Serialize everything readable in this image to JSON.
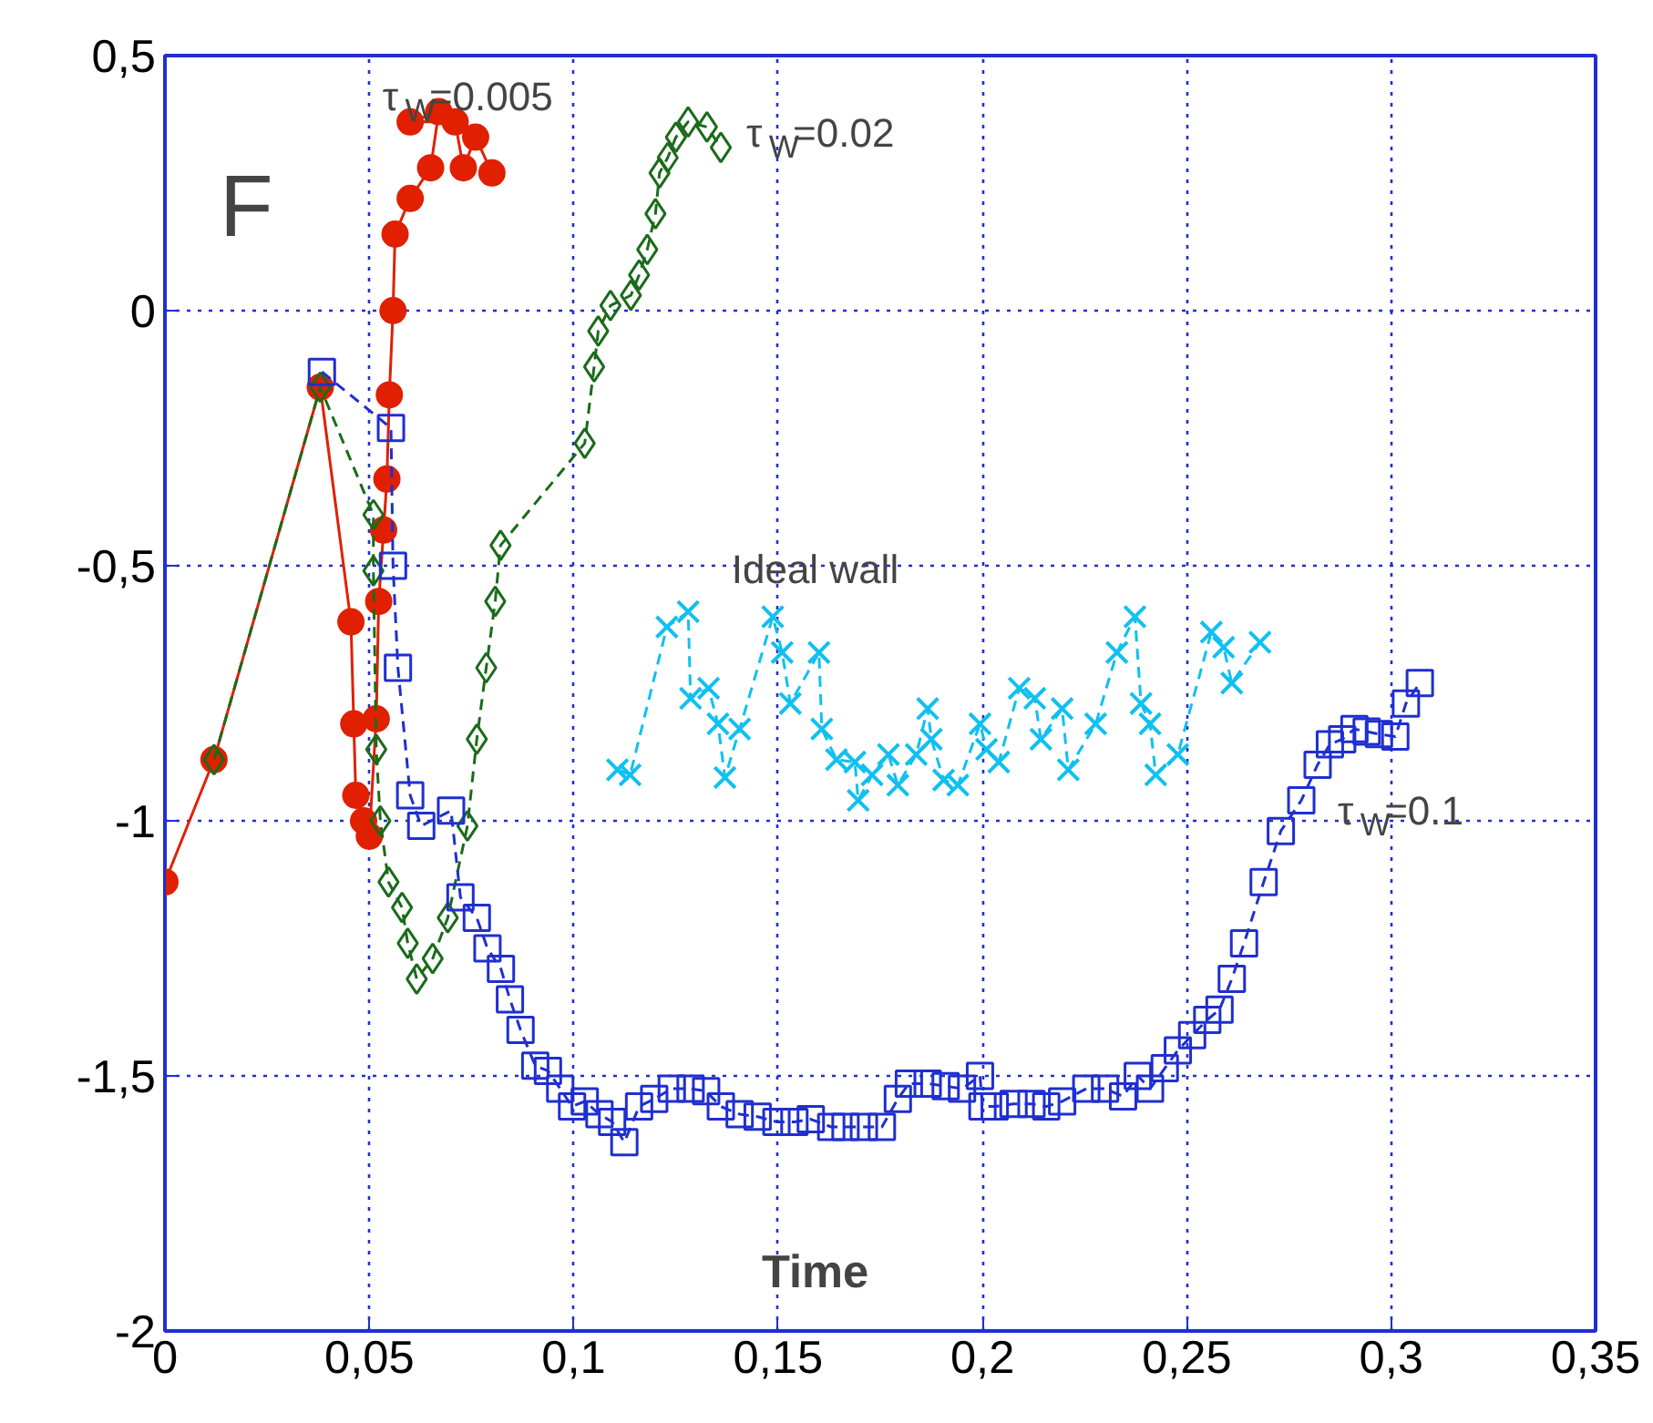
{
  "chart_data": {
    "type": "line",
    "xlabel": "Time",
    "xlim": [
      0,
      0.35
    ],
    "ylim": [
      -2,
      0.5
    ],
    "xticks": [
      0,
      {
        "value": 0.05,
        "label": "0,05"
      },
      {
        "value": 0.1,
        "label": "0,1"
      },
      {
        "value": 0.15,
        "label": "0,15"
      },
      {
        "value": 0.2,
        "label": "0,2"
      },
      {
        "value": 0.25,
        "label": "0,25"
      },
      {
        "value": 0.3,
        "label": "0,3"
      },
      {
        "value": 0.35,
        "label": "0,35"
      }
    ],
    "yticks": [
      {
        "value": -2,
        "label": "-2"
      },
      {
        "value": -1.5,
        "label": "-1,5"
      },
      {
        "value": -1,
        "label": "-1"
      },
      {
        "value": -0.5,
        "label": "-0,5"
      },
      0,
      {
        "value": 0.5,
        "label": "0,5"
      }
    ],
    "grid": true,
    "series": [
      {
        "name": "τ$_{W}$=0.005",
        "color": "#e02000",
        "marker": "circle",
        "line_style": "solid",
        "x": [
          0,
          0.012,
          0.038,
          0.0455,
          0.0462,
          0.0467,
          0.0486,
          0.05,
          0.0517,
          0.0523,
          0.0535,
          0.0543,
          0.0549,
          0.0558,
          0.0563,
          0.06,
          0.065,
          0.067,
          0.06,
          0.071,
          0.073,
          0.076,
          0.08
        ],
        "values": [
          -1.12,
          -0.88,
          -0.15,
          -0.61,
          -0.81,
          -0.95,
          -1.0,
          -1.03,
          -0.8,
          -0.57,
          -0.43,
          -0.33,
          -0.165,
          0.0,
          0.15,
          0.22,
          0.28,
          0.39,
          0.37,
          0.37,
          0.28,
          0.34,
          0.27
        ]
      },
      {
        "name": "τ$_{W}$=0.02",
        "color": "#1a6b1a",
        "marker": "diamond",
        "line_style": "dashed",
        "x": [
          0.012,
          0.038,
          0.051,
          0.051,
          0.0517,
          0.0527,
          0.0547,
          0.058,
          0.0594,
          0.0616,
          0.0655,
          0.0692,
          0.074,
          0.0763,
          0.0786,
          0.0808,
          0.0821,
          0.1027,
          0.105,
          0.106,
          0.109,
          0.114,
          0.116,
          0.118,
          0.12,
          0.121,
          0.123,
          0.125,
          0.128,
          0.1326,
          0.136
        ],
        "values": [
          -0.88,
          -0.15,
          -0.4,
          -0.51,
          -0.86,
          -1.0,
          -1.12,
          -1.17,
          -1.24,
          -1.31,
          -1.27,
          -1.19,
          -1.01,
          -0.84,
          -0.7,
          -0.57,
          -0.46,
          -0.26,
          -0.11,
          -0.04,
          0.01,
          0.03,
          0.07,
          0.12,
          0.19,
          0.27,
          0.3,
          0.34,
          0.37,
          0.36,
          0.32
        ]
      },
      {
        "name": "τ$_{W}$=0.1",
        "color": "#1f2fd0",
        "marker": "square",
        "line_style": "dashed",
        "x": [
          0.0384,
          0.0553,
          0.0558,
          0.057,
          0.06,
          0.0627,
          0.07,
          0.0723,
          0.0763,
          0.0789,
          0.0822,
          0.0844,
          0.087,
          0.0906,
          0.0937,
          0.0967,
          0.0996,
          0.1027,
          0.1063,
          0.1094,
          0.1124,
          0.116,
          0.1197,
          0.124,
          0.1286,
          0.1324,
          0.136,
          0.1406,
          0.145,
          0.1496,
          0.154,
          0.158,
          0.163,
          0.1665,
          0.171,
          0.1754,
          0.1793,
          0.182,
          0.1866,
          0.191,
          0.195,
          0.1994,
          0.2,
          0.203,
          0.2076,
          0.212,
          0.2156,
          0.2195,
          0.2254,
          0.23,
          0.2344,
          0.238,
          0.241,
          0.2446,
          0.2478,
          0.2513,
          0.255,
          0.258,
          0.261,
          0.264,
          0.2688,
          0.273,
          0.278,
          0.282,
          0.285,
          0.288,
          0.291,
          0.294,
          0.297,
          0.301,
          0.3036,
          0.307
        ],
        "values": [
          -0.12,
          -0.23,
          -0.5,
          -0.7,
          -0.95,
          -1.01,
          -0.98,
          -1.15,
          -1.19,
          -1.25,
          -1.29,
          -1.35,
          -1.41,
          -1.48,
          -1.49,
          -1.525,
          -1.56,
          -1.55,
          -1.575,
          -1.59,
          -1.63,
          -1.56,
          -1.545,
          -1.525,
          -1.525,
          -1.53,
          -1.56,
          -1.575,
          -1.58,
          -1.59,
          -1.59,
          -1.585,
          -1.6,
          -1.6,
          -1.6,
          -1.6,
          -1.545,
          -1.515,
          -1.515,
          -1.52,
          -1.525,
          -1.5,
          -1.56,
          -1.56,
          -1.555,
          -1.555,
          -1.56,
          -1.55,
          -1.525,
          -1.525,
          -1.54,
          -1.5,
          -1.525,
          -1.485,
          -1.45,
          -1.42,
          -1.39,
          -1.37,
          -1.31,
          -1.24,
          -1.12,
          -1.02,
          -0.96,
          -0.89,
          -0.85,
          -0.84,
          -0.82,
          -0.825,
          -0.83,
          -0.835,
          -0.77,
          -0.73
        ]
      },
      {
        "name": "Ideal wall",
        "color": "#10c0f0",
        "marker": "cross",
        "line_style": "dashed",
        "x": [
          0.1107,
          0.1138,
          0.1228,
          0.128,
          0.1286,
          0.133,
          0.1353,
          0.137,
          0.1406,
          0.1487,
          0.151,
          0.153,
          0.16,
          0.1607,
          0.1643,
          0.1688,
          0.1696,
          0.173,
          0.177,
          0.1793,
          0.1838,
          0.1866,
          0.1875,
          0.1905,
          0.194,
          0.1994,
          0.201,
          0.204,
          0.209,
          0.2128,
          0.2143,
          0.2195,
          0.221,
          0.2277,
          0.2329,
          0.2373,
          0.2388,
          0.241,
          0.2424,
          0.2478,
          0.256,
          0.259,
          0.261,
          0.2679
        ],
        "values": [
          -0.9,
          -0.91,
          -0.62,
          -0.59,
          -0.76,
          -0.74,
          -0.81,
          -0.915,
          -0.82,
          -0.6,
          -0.67,
          -0.77,
          -0.67,
          -0.82,
          -0.88,
          -0.885,
          -0.96,
          -0.91,
          -0.87,
          -0.93,
          -0.87,
          -0.78,
          -0.84,
          -0.92,
          -0.93,
          -0.81,
          -0.86,
          -0.885,
          -0.74,
          -0.76,
          -0.84,
          -0.78,
          -0.9,
          -0.81,
          -0.67,
          -0.6,
          -0.77,
          -0.81,
          -0.91,
          -0.87,
          -0.63,
          -0.66,
          -0.73,
          -0.65
        ]
      }
    ],
    "annotations": [
      "F"
    ]
  }
}
